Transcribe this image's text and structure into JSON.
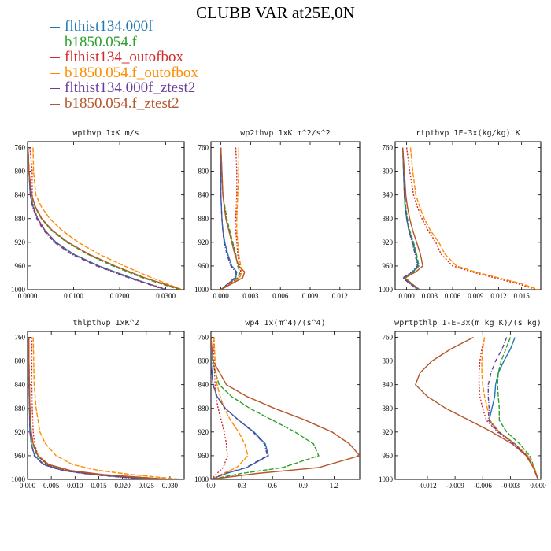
{
  "title": "CLUBB VAR at25E,0N",
  "legend": [
    {
      "label": "flthist134.000f",
      "color": "#1f77b4"
    },
    {
      "label": "b1850.054.f",
      "color": "#2ca02c"
    },
    {
      "label": "flthist134_outofbox",
      "color": "#d62728"
    },
    {
      "label": "b1850.054.f_outofbox",
      "color": "#ff8c00"
    },
    {
      "label": "flthist134.000f_ztest2",
      "color": "#6a3d9a"
    },
    {
      "label": "b1850.054.f_ztest2",
      "color": "#b5562a"
    }
  ],
  "chart_data": [
    {
      "type": "line",
      "title": "wpthvp  1xK m/s",
      "xlim": [
        0,
        0.034
      ],
      "ylim": [
        1000,
        750
      ],
      "xticks": [
        "0.0000",
        "0.0100",
        "0.0200",
        "0.0300"
      ],
      "xtick_values": [
        0,
        0.01,
        0.02,
        0.03
      ],
      "yticks": [
        760,
        800,
        840,
        880,
        920,
        960,
        1000
      ],
      "y": [
        760,
        800,
        840,
        860,
        880,
        900,
        920,
        940,
        960,
        980,
        1000
      ],
      "series": [
        {
          "name": "flthist134.000f",
          "x": [
            0.0001,
            0.0003,
            0.0006,
            0.0012,
            0.0022,
            0.0038,
            0.0062,
            0.01,
            0.0155,
            0.0225,
            0.03
          ]
        },
        {
          "name": "b1850.054.f",
          "x": [
            0.0001,
            0.0003,
            0.0008,
            0.0016,
            0.003,
            0.0052,
            0.0085,
            0.013,
            0.0185,
            0.025,
            0.033
          ]
        },
        {
          "name": "flthist134_outofbox",
          "x": [
            0.0005,
            0.001,
            0.001,
            0.0013,
            0.0022,
            0.0038,
            0.006,
            0.0098,
            0.0152,
            0.022,
            0.0305
          ]
        },
        {
          "name": "b1850.054.f_outofbox",
          "x": [
            0.0012,
            0.0013,
            0.0018,
            0.003,
            0.0048,
            0.0075,
            0.011,
            0.0155,
            0.021,
            0.027,
            0.0335
          ]
        },
        {
          "name": "flthist134.000f_ztest2",
          "x": [
            0.0001,
            0.0003,
            0.0006,
            0.0011,
            0.002,
            0.0035,
            0.0058,
            0.0095,
            0.015,
            0.022,
            0.0298
          ]
        },
        {
          "name": "b1850.054.f_ztest2",
          "x": [
            0.0001,
            0.0003,
            0.0009,
            0.0017,
            0.0031,
            0.0054,
            0.0088,
            0.0133,
            0.019,
            0.0255,
            0.0335
          ]
        }
      ]
    },
    {
      "type": "line",
      "title": "wp2thvp  1xK m^2/s^2",
      "xlim": [
        -0.001,
        0.014
      ],
      "ylim": [
        1000,
        750
      ],
      "xticks": [
        "0.000",
        "0.003",
        "0.006",
        "0.009",
        "0.012"
      ],
      "xtick_values": [
        0,
        0.003,
        0.006,
        0.009,
        0.012
      ],
      "yticks": [
        760,
        800,
        840,
        880,
        920,
        960,
        1000
      ],
      "y": [
        760,
        800,
        840,
        880,
        900,
        920,
        940,
        960,
        970,
        980,
        990,
        1000
      ],
      "series": [
        {
          "name": "flthist134.000f",
          "x": [
            0.0,
            0.0,
            0.0,
            0.0001,
            0.0002,
            0.0004,
            0.0007,
            0.0011,
            0.0016,
            0.0015,
            0.0007,
            0.0
          ]
        },
        {
          "name": "b1850.054.f",
          "x": [
            0.0,
            0.0001,
            0.0002,
            0.0006,
            0.0009,
            0.0012,
            0.0015,
            0.0017,
            0.0019,
            0.0017,
            0.0008,
            0.0
          ]
        },
        {
          "name": "flthist134_outofbox",
          "x": [
            0.0015,
            0.0016,
            0.0016,
            0.0015,
            0.0015,
            0.0016,
            0.0017,
            0.0019,
            0.002,
            0.0018,
            0.0009,
            0.0
          ]
        },
        {
          "name": "b1850.054.f_outofbox",
          "x": [
            0.0018,
            0.0018,
            0.0017,
            0.0016,
            0.0016,
            0.0017,
            0.0018,
            0.002,
            0.0021,
            0.0019,
            0.001,
            0.0
          ]
        },
        {
          "name": "flthist134.000f_ztest2",
          "x": [
            0.0,
            0.0,
            0.0,
            0.0001,
            0.0002,
            0.0003,
            0.0006,
            0.001,
            0.0015,
            0.0014,
            0.0007,
            0.0
          ]
        },
        {
          "name": "b1850.054.f_ztest2",
          "x": [
            0.0,
            0.0001,
            0.0002,
            0.0005,
            0.0008,
            0.0011,
            0.0014,
            0.0018,
            0.0024,
            0.0022,
            0.0011,
            0.0
          ]
        }
      ]
    },
    {
      "type": "line",
      "title": "rtpthvp  1E-3x(kg/kg) K",
      "xlim": [
        -0.0015,
        0.0175
      ],
      "ylim": [
        1000,
        750
      ],
      "xticks": [
        "0.000",
        "0.003",
        "0.006",
        "0.009",
        "0.012",
        "0.015"
      ],
      "xtick_values": [
        0,
        0.003,
        0.006,
        0.009,
        0.012,
        0.015
      ],
      "yticks": [
        760,
        800,
        840,
        880,
        920,
        960,
        1000
      ],
      "y": [
        760,
        800,
        840,
        860,
        880,
        900,
        920,
        940,
        960,
        970,
        980,
        990,
        1000
      ],
      "series": [
        {
          "name": "flthist134.000f",
          "x": [
            -0.0005,
            -0.0004,
            -0.0003,
            -0.0002,
            0.0,
            0.0003,
            0.0008,
            0.0012,
            0.0015,
            0.0008,
            -0.0004,
            0.0005,
            0.0015
          ]
        },
        {
          "name": "b1850.054.f",
          "x": [
            -0.0005,
            -0.0004,
            -0.0002,
            -0.0001,
            0.0001,
            0.0004,
            0.0009,
            0.0013,
            0.0016,
            0.0009,
            -0.0003,
            0.0006,
            0.0016
          ]
        },
        {
          "name": "flthist134_outofbox",
          "x": [
            0.0,
            0.0004,
            0.0009,
            0.0014,
            0.002,
            0.0028,
            0.0038,
            0.0045,
            0.006,
            0.0085,
            0.0115,
            0.0145,
            0.017
          ]
        },
        {
          "name": "b1850.054.f_outofbox",
          "x": [
            0.0005,
            0.0008,
            0.0012,
            0.0017,
            0.0023,
            0.0031,
            0.0042,
            0.005,
            0.0065,
            0.009,
            0.012,
            0.015,
            0.0172
          ]
        },
        {
          "name": "flthist134.000f_ztest2",
          "x": [
            -0.0005,
            -0.0004,
            -0.0003,
            -0.0002,
            0.0,
            0.0003,
            0.0007,
            0.0011,
            0.0014,
            0.0007,
            -0.0005,
            0.0004,
            0.0014
          ]
        },
        {
          "name": "b1850.054.f_ztest2",
          "x": [
            -0.0005,
            -0.0003,
            -0.0001,
            0.0001,
            0.0004,
            0.0008,
            0.0013,
            0.0018,
            0.0021,
            0.0012,
            -0.0002,
            0.0007,
            0.0017
          ]
        }
      ]
    },
    {
      "type": "line",
      "title": "thlpthvp  1xK^2",
      "xlim": [
        0,
        0.033
      ],
      "ylim": [
        1000,
        750
      ],
      "xticks": [
        "0.000",
        "0.005",
        "0.010",
        "0.015",
        "0.020",
        "0.025",
        "0.030"
      ],
      "xtick_values": [
        0,
        0.005,
        0.01,
        0.015,
        0.02,
        0.025,
        0.03
      ],
      "yticks": [
        760,
        800,
        840,
        880,
        920,
        960,
        1000
      ],
      "y": [
        760,
        800,
        840,
        880,
        920,
        940,
        960,
        975,
        985,
        992,
        1000
      ],
      "series": [
        {
          "name": "flthist134.000f",
          "x": [
            0.0003,
            0.0003,
            0.0003,
            0.0004,
            0.0005,
            0.0008,
            0.0015,
            0.0035,
            0.0075,
            0.014,
            0.026
          ]
        },
        {
          "name": "b1850.054.f",
          "x": [
            0.0003,
            0.0003,
            0.0004,
            0.0005,
            0.0007,
            0.0011,
            0.002,
            0.0042,
            0.0085,
            0.015,
            0.028
          ]
        },
        {
          "name": "flthist134_outofbox",
          "x": [
            0.0009,
            0.0009,
            0.0009,
            0.001,
            0.0012,
            0.0015,
            0.0022,
            0.004,
            0.008,
            0.0145,
            0.027
          ]
        },
        {
          "name": "b1850.054.f_outofbox",
          "x": [
            0.0012,
            0.0013,
            0.0014,
            0.0018,
            0.0026,
            0.0038,
            0.006,
            0.0095,
            0.015,
            0.022,
            0.0325
          ]
        },
        {
          "name": "flthist134.000f_ztest2",
          "x": [
            0.0003,
            0.0003,
            0.0003,
            0.0004,
            0.0005,
            0.0008,
            0.0014,
            0.0033,
            0.0072,
            0.0135,
            0.025
          ]
        },
        {
          "name": "b1850.054.f_ztest2",
          "x": [
            0.0003,
            0.0003,
            0.0004,
            0.0005,
            0.0008,
            0.0012,
            0.0022,
            0.0045,
            0.009,
            0.016,
            0.03
          ]
        }
      ]
    },
    {
      "type": "line",
      "title": "wp4  1x(m^4)/(s^4)",
      "xlim": [
        0,
        1.45
      ],
      "ylim": [
        1000,
        750
      ],
      "xticks": [
        "0.0",
        "0.3",
        "0.6",
        "0.9",
        "1.2"
      ],
      "xtick_values": [
        0,
        0.3,
        0.6,
        0.9,
        1.2
      ],
      "yticks": [
        760,
        800,
        840,
        880,
        920,
        960,
        1000
      ],
      "y": [
        760,
        800,
        840,
        860,
        880,
        900,
        920,
        940,
        960,
        980,
        990,
        1000
      ],
      "series": [
        {
          "name": "flthist134.000f",
          "x": [
            0.0,
            0.0,
            0.02,
            0.06,
            0.14,
            0.27,
            0.42,
            0.53,
            0.56,
            0.35,
            0.15,
            0.0
          ]
        },
        {
          "name": "b1850.054.f",
          "x": [
            0.0,
            0.01,
            0.08,
            0.2,
            0.38,
            0.6,
            0.82,
            1.0,
            1.05,
            0.7,
            0.3,
            0.0
          ]
        },
        {
          "name": "flthist134_outofbox",
          "x": [
            0.02,
            0.03,
            0.04,
            0.05,
            0.07,
            0.1,
            0.13,
            0.15,
            0.16,
            0.12,
            0.06,
            0.0
          ]
        },
        {
          "name": "b1850.054.f_outofbox",
          "x": [
            0.03,
            0.04,
            0.06,
            0.09,
            0.13,
            0.19,
            0.27,
            0.33,
            0.36,
            0.25,
            0.12,
            0.0
          ]
        },
        {
          "name": "flthist134.000f_ztest2",
          "x": [
            0.0,
            0.0,
            0.02,
            0.06,
            0.14,
            0.27,
            0.41,
            0.52,
            0.55,
            0.34,
            0.14,
            0.0
          ]
        },
        {
          "name": "b1850.054.f_ztest2",
          "x": [
            0.0,
            0.02,
            0.15,
            0.35,
            0.62,
            0.92,
            1.18,
            1.35,
            1.45,
            1.05,
            0.45,
            0.0
          ]
        }
      ]
    },
    {
      "type": "line",
      "title": "wprtpthlp  1-E-3x(m kg K)/(s kg)",
      "xlim": [
        -0.0155,
        0.0003
      ],
      "ylim": [
        1000,
        750
      ],
      "xticks": [
        "-0.012",
        "-0.009",
        "-0.006",
        "-0.003",
        "0.000"
      ],
      "xtick_values": [
        -0.012,
        -0.009,
        -0.006,
        -0.003,
        0
      ],
      "yticks": [
        760,
        800,
        840,
        880,
        920,
        960,
        1000
      ],
      "y": [
        760,
        780,
        800,
        820,
        840,
        860,
        880,
        900,
        920,
        940,
        960,
        980,
        1000
      ],
      "series": [
        {
          "name": "flthist134.000f",
          "x": [
            -0.0025,
            -0.003,
            -0.0037,
            -0.0043,
            -0.0046,
            -0.0047,
            -0.005,
            -0.0053,
            -0.0042,
            -0.0025,
            -0.0012,
            -0.0005,
            0.0
          ]
        },
        {
          "name": "b1850.054.f",
          "x": [
            -0.003,
            -0.0035,
            -0.004,
            -0.0043,
            -0.0044,
            -0.0043,
            -0.0042,
            -0.0042,
            -0.0034,
            -0.002,
            -0.0009,
            -0.0004,
            0.0
          ]
        },
        {
          "name": "flthist134_outofbox",
          "x": [
            -0.0058,
            -0.0061,
            -0.0063,
            -0.0064,
            -0.0064,
            -0.0063,
            -0.006,
            -0.0056,
            -0.0044,
            -0.0026,
            -0.0012,
            -0.0005,
            0.0
          ]
        },
        {
          "name": "b1850.054.f_outofbox",
          "x": [
            -0.0058,
            -0.006,
            -0.0061,
            -0.0061,
            -0.006,
            -0.0058,
            -0.0055,
            -0.0052,
            -0.0042,
            -0.0025,
            -0.0011,
            -0.0004,
            0.0
          ]
        },
        {
          "name": "flthist134.000f_ztest2",
          "x": [
            -0.0034,
            -0.0039,
            -0.0046,
            -0.0051,
            -0.0054,
            -0.0054,
            -0.0053,
            -0.0054,
            -0.0043,
            -0.0026,
            -0.0012,
            -0.0005,
            0.0
          ]
        },
        {
          "name": "b1850.054.f_ztest2",
          "x": [
            -0.007,
            -0.0095,
            -0.0115,
            -0.0128,
            -0.0133,
            -0.012,
            -0.01,
            -0.0075,
            -0.005,
            -0.0028,
            -0.0013,
            -0.0005,
            0.0
          ]
        }
      ]
    }
  ]
}
